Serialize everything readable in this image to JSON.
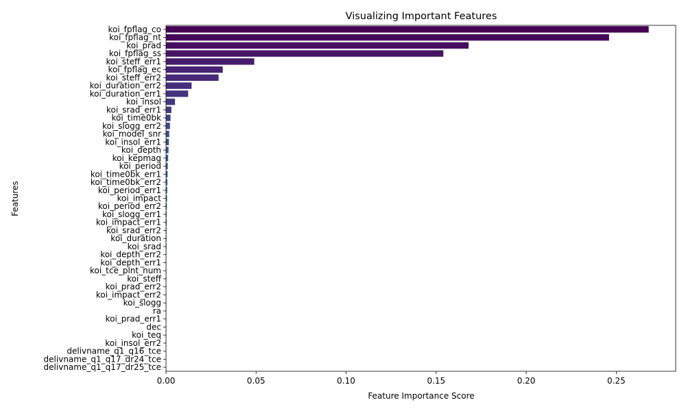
{
  "chart_data": {
    "type": "bar",
    "orientation": "horizontal",
    "title": "Visualizing Important Features",
    "xlabel": "Feature Importance Score",
    "ylabel": "Features",
    "xlim": [
      0,
      0.283
    ],
    "xticks": [
      0.0,
      0.05,
      0.1,
      0.15,
      0.2,
      0.25
    ],
    "xtick_labels": [
      "0.00",
      "0.05",
      "0.10",
      "0.15",
      "0.20",
      "0.25"
    ],
    "grid": false,
    "legend": "none",
    "palette": "viridis",
    "categories": [
      "koi_fpflag_co",
      "koi_fpflag_nt",
      "koi_prad",
      "koi_fpflag_ss",
      "koi_steff_err1",
      "koi_fpflag_ec",
      "koi_steff_err2",
      "koi_duration_err2",
      "koi_duration_err1",
      "koi_insol",
      "koi_srad_err1",
      "koi_time0bk",
      "koi_slogg_err2",
      "koi_model_snr",
      "koi_insol_err1",
      "koi_depth",
      "koi_kepmag",
      "koi_period",
      "koi_time0bk_err1",
      "koi_time0bk_err2",
      "koi_period_err1",
      "koi_impact",
      "koi_period_err2",
      "koi_slogg_err1",
      "koi_impact_err1",
      "koi_srad_err2",
      "koi_duration",
      "koi_srad",
      "koi_depth_err2",
      "koi_depth_err1",
      "koi_tce_plnt_num",
      "koi_steff",
      "koi_prad_err2",
      "koi_impact_err2",
      "koi_slogg",
      "ra",
      "koi_prad_err1",
      "dec",
      "koi_teq",
      "koi_insol_err2",
      "delivname_q1_q16_tce",
      "delivname_q1_q17_dr24_tce",
      "delivname_q1_q17_dr25_tce"
    ],
    "values": [
      0.268,
      0.246,
      0.168,
      0.154,
      0.049,
      0.0315,
      0.0292,
      0.0142,
      0.0123,
      0.005,
      0.003,
      0.0025,
      0.0022,
      0.0018,
      0.0016,
      0.0014,
      0.0012,
      0.001,
      0.0009,
      0.0008,
      0.0007,
      0.0006,
      0.0005,
      0.0004,
      0.0004,
      0.0003,
      0.0003,
      0.0003,
      0.0002,
      0.0002,
      0.0002,
      0.0002,
      0.0001,
      0.0001,
      0.0001,
      0.0001,
      0.0001,
      0.0001,
      0.0001,
      0.0001,
      0.0,
      0.0,
      0.0
    ]
  }
}
